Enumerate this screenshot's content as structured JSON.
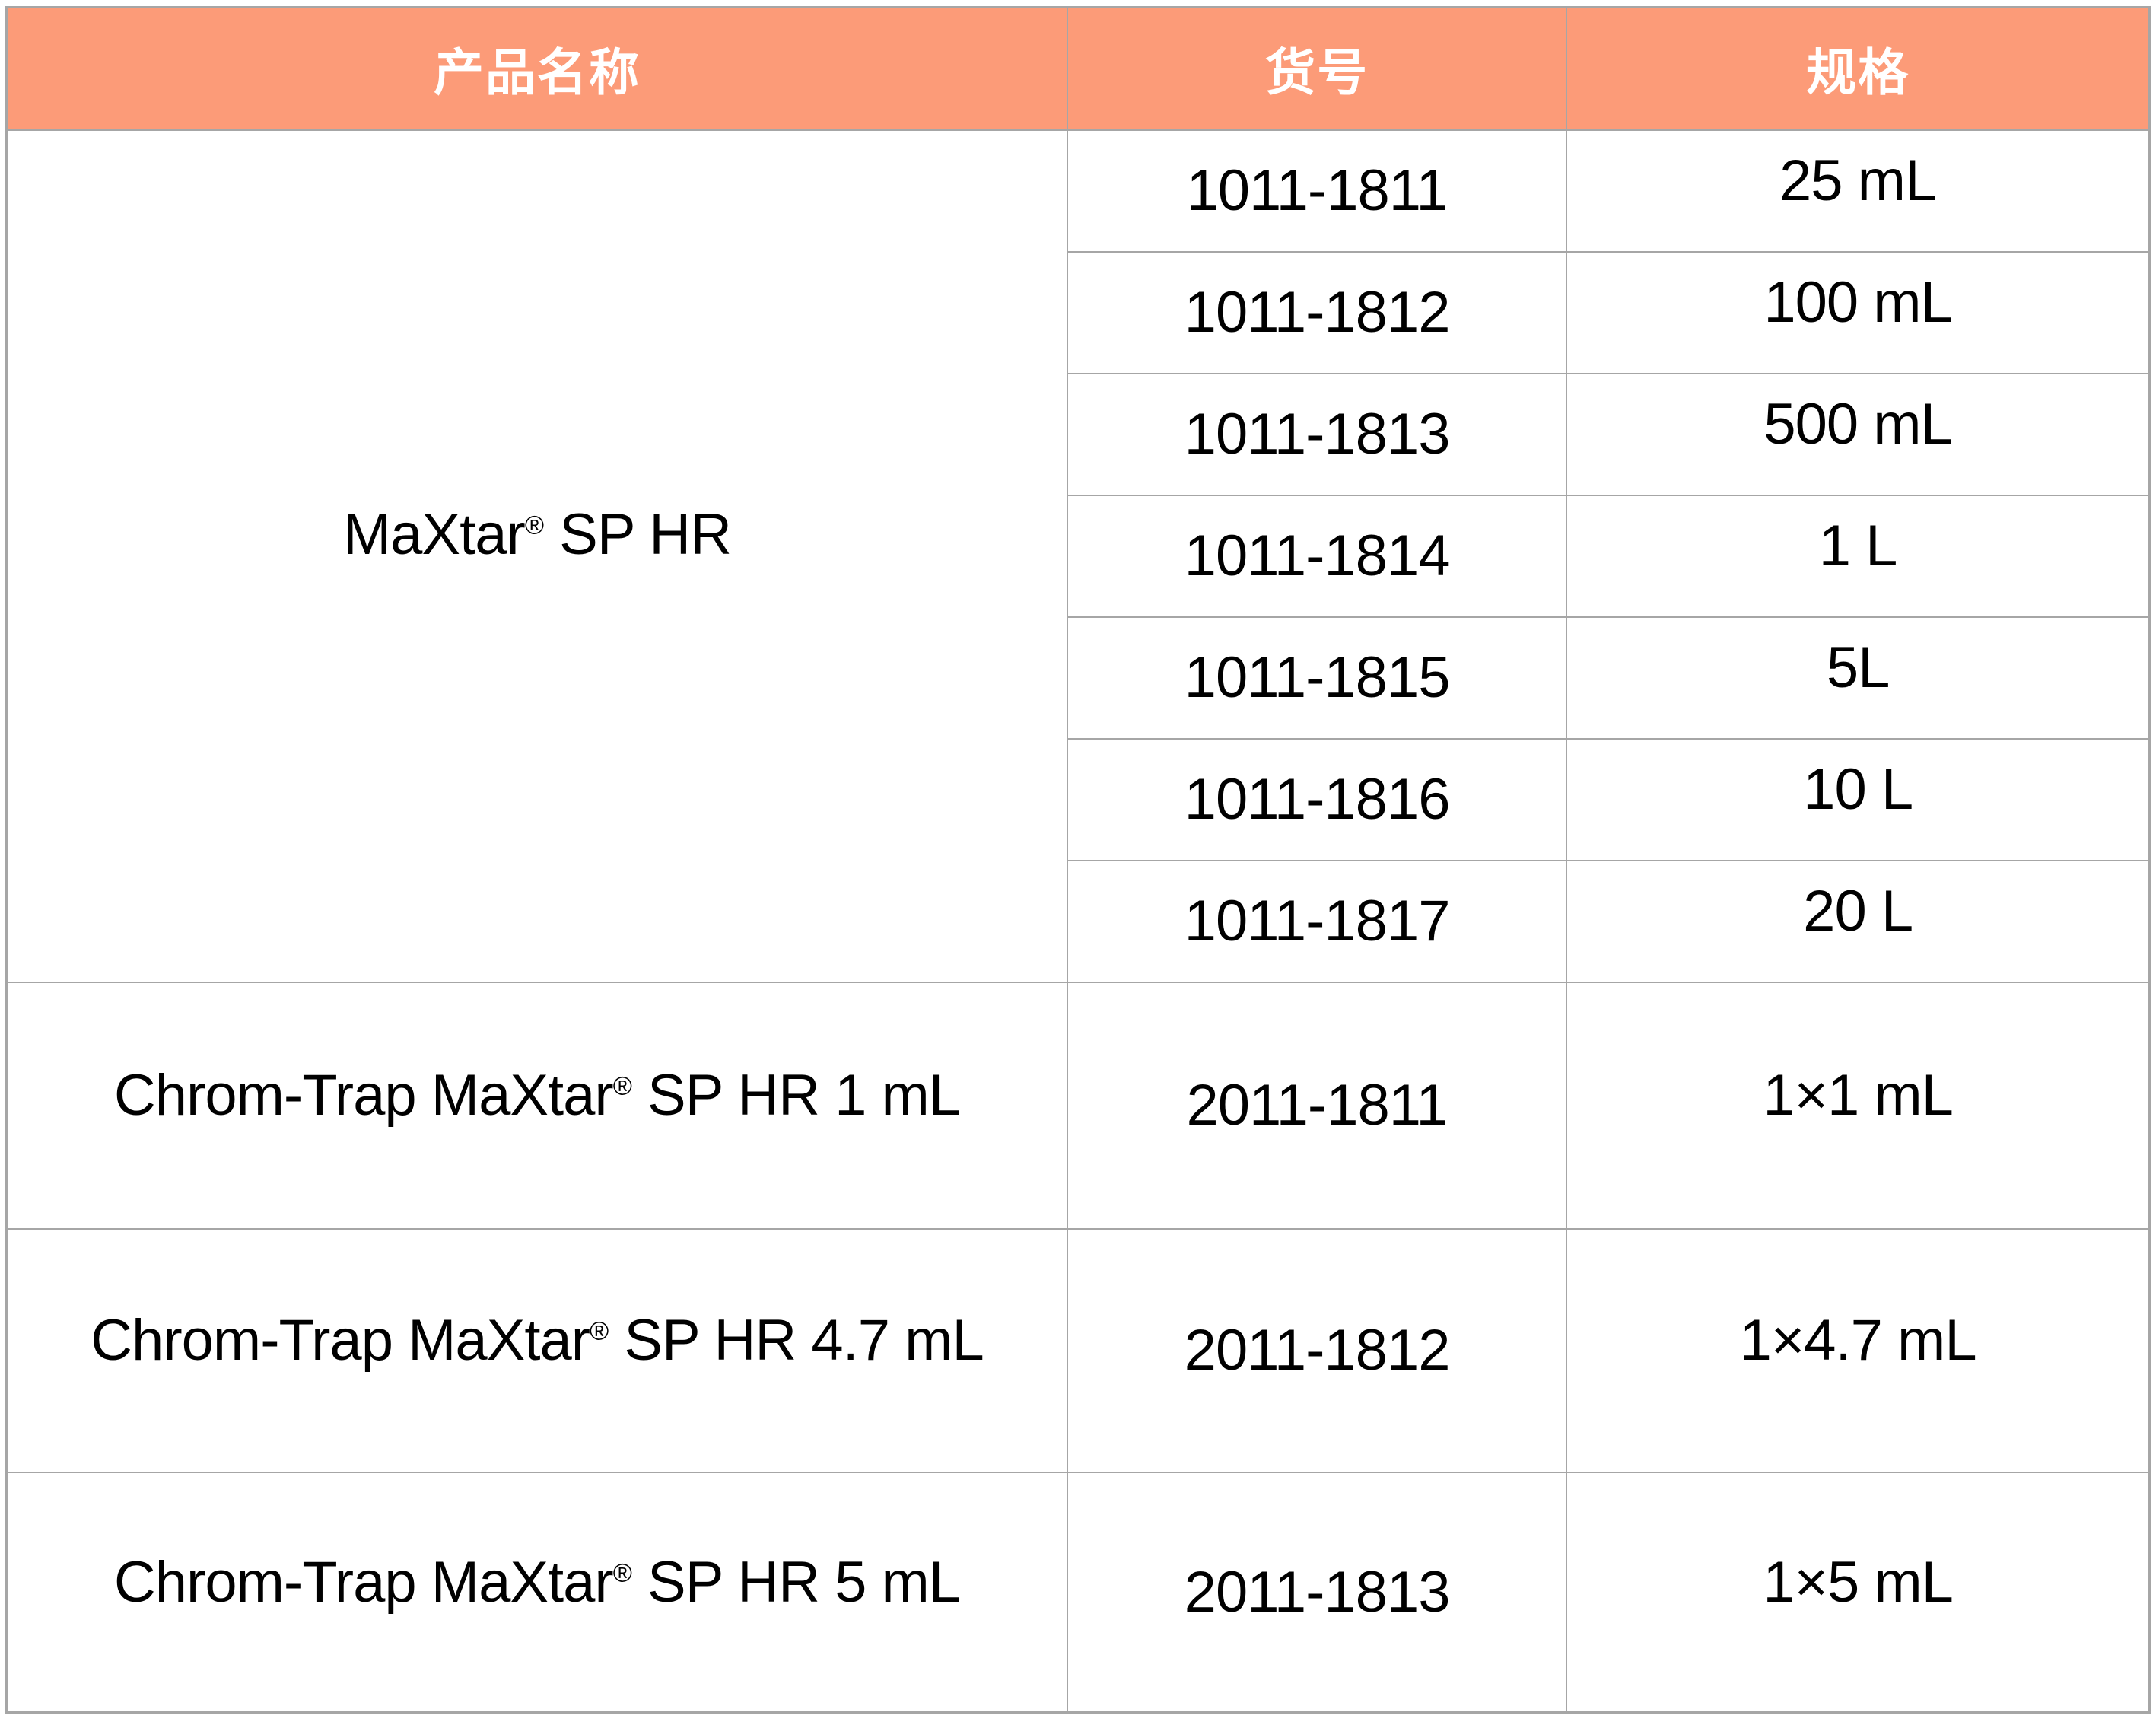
{
  "table": {
    "headers": [
      "产品名称",
      "货号",
      "规格"
    ],
    "groups": [
      {
        "product": "MaXtar® SP HR",
        "items": [
          {
            "catalog": "1011-1811",
            "spec": "25 mL"
          },
          {
            "catalog": "1011-1812",
            "spec": "100 mL"
          },
          {
            "catalog": "1011-1813",
            "spec": "500 mL"
          },
          {
            "catalog": "1011-1814",
            "spec": "1 L"
          },
          {
            "catalog": "1011-1815",
            "spec": "5L"
          },
          {
            "catalog": "1011-1816",
            "spec": "10 L"
          },
          {
            "catalog": "1011-1817",
            "spec": "20 L"
          }
        ]
      },
      {
        "product": "Chrom-Trap MaXtar® SP HR 1 mL",
        "items": [
          {
            "catalog": "2011-1811",
            "spec": "1×1 mL"
          }
        ]
      },
      {
        "product": "Chrom-Trap MaXtar® SP HR 4.7 mL",
        "items": [
          {
            "catalog": "2011-1812",
            "spec": "1×4.7 mL"
          }
        ]
      },
      {
        "product": "Chrom-Trap MaXtar® SP HR 5 mL",
        "items": [
          {
            "catalog": "2011-1813",
            "spec": "1×5 mL"
          }
        ]
      }
    ],
    "colors": {
      "header_bg": "#FC9B78",
      "header_text": "#FFFFFF",
      "border": "#A6A6A6",
      "body_text": "#000000"
    }
  }
}
